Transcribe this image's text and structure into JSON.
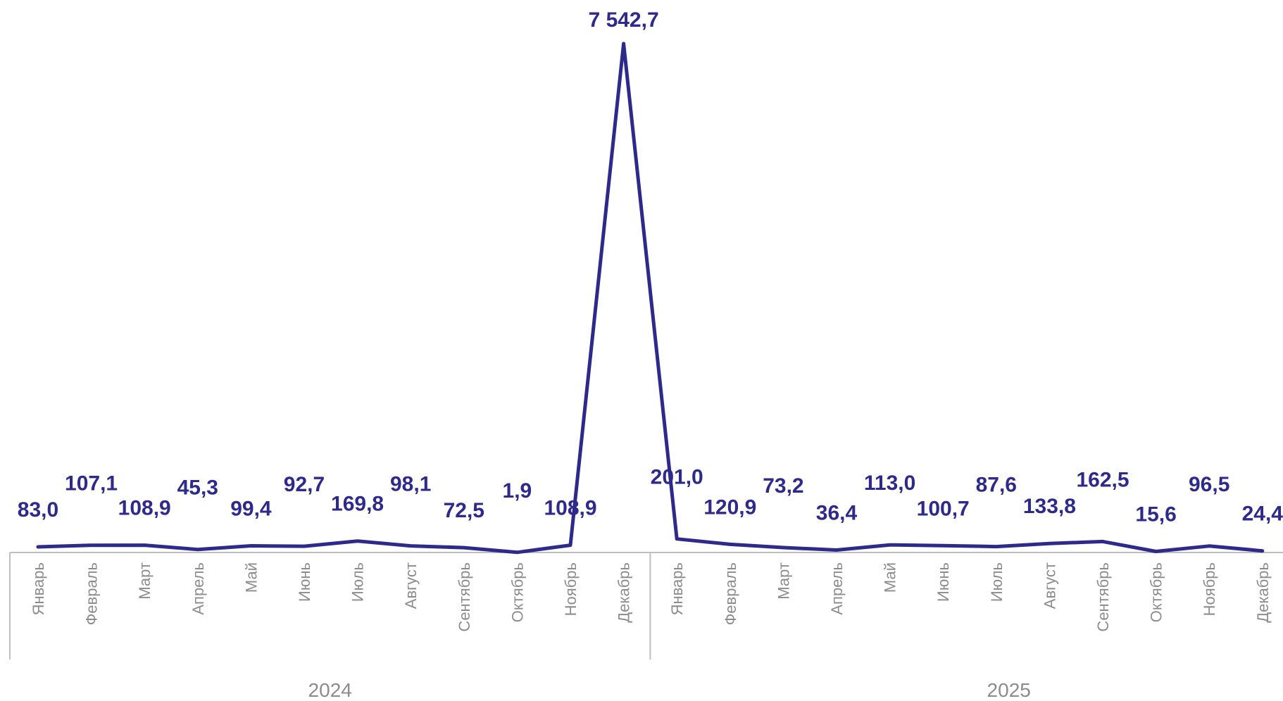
{
  "chart_data": {
    "type": "line",
    "colors": {
      "line": "#2e2a8c",
      "labels": "#2e2a8c",
      "axis": "#bfbfbf",
      "axis_text": "#8c8c8c"
    },
    "groups": [
      {
        "label": "2024",
        "months": [
          "Январь",
          "Февраль",
          "Март",
          "Апрель",
          "Май",
          "Июнь",
          "Июль",
          "Август",
          "Сентябрь",
          "Октябрь",
          "Ноябрь",
          "Декабрь"
        ]
      },
      {
        "label": "2025",
        "months": [
          "Январь",
          "Февраль",
          "Март",
          "Апрель",
          "Май",
          "Июнь",
          "Июль",
          "Август",
          "Сентябрь",
          "Октябрь",
          "Ноябрь",
          "Декабрь"
        ]
      }
    ],
    "series": [
      {
        "values": [
          83.0,
          107.1,
          108.9,
          45.3,
          99.4,
          92.7,
          169.8,
          98.1,
          72.5,
          1.9,
          108.9,
          7542.7,
          201.0,
          120.9,
          73.2,
          36.4,
          113.0,
          100.7,
          87.6,
          133.8,
          162.5,
          15.6,
          96.5,
          24.4
        ],
        "labels": [
          "83,0",
          "107,1",
          "108,9",
          "45,3",
          "99,4",
          "92,7",
          "169,8",
          "98,1",
          "72,5",
          "1,9",
          "108,9",
          "7 542,7",
          "201,0",
          "120,9",
          "73,2",
          "36,4",
          "113,0",
          "100,7",
          "87,6",
          "133,8",
          "162,5",
          "15,6",
          "96,5",
          "24,4"
        ]
      }
    ],
    "ylim": [
      0,
      7542.7
    ]
  }
}
